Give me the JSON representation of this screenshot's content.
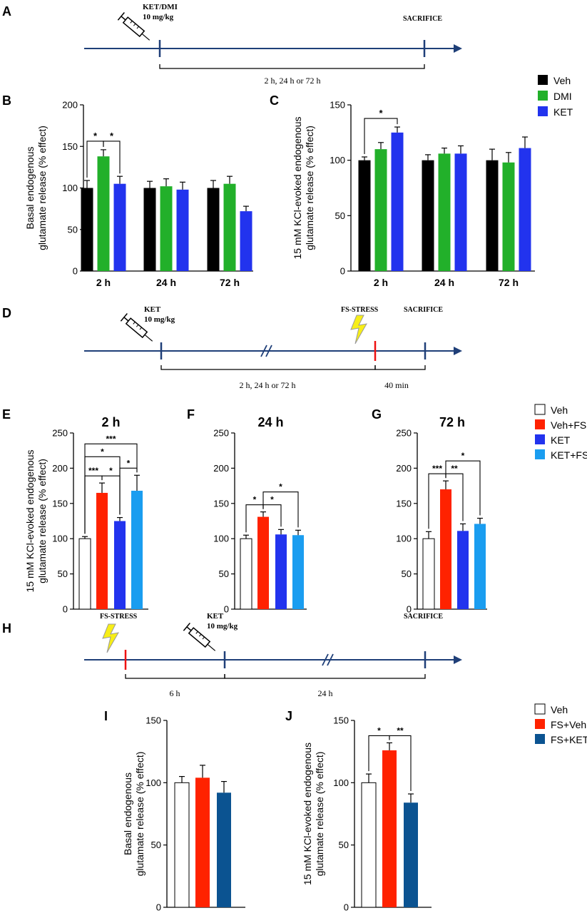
{
  "colors": {
    "veh_black": "#000000",
    "dmi_green": "#22b02a",
    "ket_blue": "#2233ee",
    "white": "#ffffff",
    "fs_red": "#ff2200",
    "ketfs_lightblue": "#1a9df0",
    "fsket_darkblue": "#0b5391",
    "timeline": "#1f3f78",
    "stress_red": "#ee1111",
    "bolt_yellow": "#f7ee17"
  },
  "timelines": {
    "A": {
      "panel": "A",
      "event_ket_dmi": "KET/DMI",
      "dose": "10 mg/kg",
      "event_sacrifice": "SACRIFICE",
      "interval": "2 h, 24 h or 72 h"
    },
    "D": {
      "panel": "D",
      "event_ket": "KET",
      "dose": "10 mg/kg",
      "event_stress": "FS-STRESS",
      "event_sacrifice": "SACRIFICE",
      "interval_1": "2 h, 24 h or 72 h",
      "interval_2": "40 min"
    },
    "H": {
      "panel": "H",
      "event_stress": "FS-STRESS",
      "event_ket": "KET",
      "dose": "10 mg/kg",
      "event_sacrifice": "SACRIFICE",
      "interval_1": "6 h",
      "interval_2": "24 h"
    }
  },
  "legends": {
    "BC": [
      {
        "name": "Veh",
        "color": "#000000"
      },
      {
        "name": "DMI",
        "color": "#22b02a"
      },
      {
        "name": "KET",
        "color": "#2233ee"
      }
    ],
    "EFG": [
      {
        "name": "Veh",
        "color": "#ffffff"
      },
      {
        "name": "Veh+FS",
        "color": "#ff2200"
      },
      {
        "name": "KET",
        "color": "#2233ee"
      },
      {
        "name": "KET+FS",
        "color": "#1a9df0"
      }
    ],
    "IJ": [
      {
        "name": "Veh",
        "color": "#ffffff"
      },
      {
        "name": "FS+Veh",
        "color": "#ff2200"
      },
      {
        "name": "FS+KET",
        "color": "#0b5391"
      }
    ]
  },
  "chart_data": [
    {
      "panel": "B",
      "type": "bar",
      "title": "",
      "ylabel_lines": [
        "Basal endogenous",
        "glutamate release (% effect)"
      ],
      "ylim": [
        0,
        200
      ],
      "yticks": [
        0,
        50,
        100,
        150,
        200
      ],
      "categories": [
        "2 h",
        "24 h",
        "72 h"
      ],
      "series": [
        {
          "name": "Veh",
          "color": "#000000",
          "values": [
            100,
            100,
            100
          ],
          "errors": [
            9,
            8,
            9
          ]
        },
        {
          "name": "DMI",
          "color": "#22b02a",
          "values": [
            138,
            102,
            105
          ],
          "errors": [
            8,
            9,
            9
          ]
        },
        {
          "name": "KET",
          "color": "#2233ee",
          "values": [
            105,
            98,
            72
          ],
          "errors": [
            9,
            9,
            6
          ]
        }
      ],
      "significance": [
        {
          "group": 0,
          "from": 0,
          "to": 1,
          "label": "*",
          "level": 0
        },
        {
          "group": 0,
          "from": 1,
          "to": 2,
          "label": "*",
          "level": 0
        }
      ]
    },
    {
      "panel": "C",
      "type": "bar",
      "title": "",
      "ylabel_lines": [
        "15 mM KCl-evoked endogenous",
        "glutamate release (% effect)"
      ],
      "ylim": [
        0,
        150
      ],
      "yticks": [
        0,
        50,
        100,
        150
      ],
      "categories": [
        "2 h",
        "24 h",
        "72 h"
      ],
      "series": [
        {
          "name": "Veh",
          "color": "#000000",
          "values": [
            100,
            100,
            100
          ],
          "errors": [
            3,
            5,
            10
          ]
        },
        {
          "name": "DMI",
          "color": "#22b02a",
          "values": [
            110,
            106,
            98
          ],
          "errors": [
            6,
            5,
            9
          ]
        },
        {
          "name": "KET",
          "color": "#2233ee",
          "values": [
            125,
            106,
            111
          ],
          "errors": [
            5,
            7,
            10
          ]
        }
      ],
      "significance": [
        {
          "group": 0,
          "from": 0,
          "to": 2,
          "label": "*",
          "level": 0
        }
      ]
    },
    {
      "panel": "E",
      "type": "bar",
      "title": "2 h",
      "ylabel_lines": [
        "15 mM KCl-evoked endogenous",
        "glutamate release (% effect)"
      ],
      "ylim": [
        0,
        250
      ],
      "yticks": [
        0,
        50,
        100,
        150,
        200,
        250
      ],
      "categories": [
        "Veh",
        "Veh+FS",
        "KET",
        "KET+FS"
      ],
      "values": [
        100,
        165,
        125,
        168
      ],
      "errors": [
        3,
        14,
        5,
        22
      ],
      "colors": [
        "#ffffff",
        "#ff2200",
        "#2233ee",
        "#1a9df0"
      ],
      "significance": [
        {
          "from": 0,
          "to": 1,
          "label": "***",
          "level": 0
        },
        {
          "from": 1,
          "to": 2,
          "label": "*",
          "level": 0
        },
        {
          "from": 2,
          "to": 3,
          "label": "*",
          "level": 0
        },
        {
          "from": 0,
          "to": 2,
          "label": "*",
          "level": 1
        },
        {
          "from": 0,
          "to": 3,
          "label": "***",
          "level": 2
        }
      ]
    },
    {
      "panel": "F",
      "type": "bar",
      "title": "24 h",
      "ylabel_lines": [],
      "ylim": [
        0,
        250
      ],
      "yticks": [
        0,
        50,
        100,
        150,
        200,
        250
      ],
      "categories": [
        "Veh",
        "Veh+FS",
        "KET",
        "KET+FS"
      ],
      "values": [
        100,
        131,
        106,
        105
      ],
      "errors": [
        5,
        7,
        7,
        7
      ],
      "colors": [
        "#ffffff",
        "#ff2200",
        "#2233ee",
        "#1a9df0"
      ],
      "significance": [
        {
          "from": 0,
          "to": 1,
          "label": "*",
          "level": 0
        },
        {
          "from": 1,
          "to": 2,
          "label": "*",
          "level": 0
        },
        {
          "from": 1,
          "to": 3,
          "label": "*",
          "level": 1
        }
      ]
    },
    {
      "panel": "G",
      "type": "bar",
      "title": "72 h",
      "ylabel_lines": [],
      "ylim": [
        0,
        250
      ],
      "yticks": [
        0,
        50,
        100,
        150,
        200,
        250
      ],
      "categories": [
        "Veh",
        "Veh+FS",
        "KET",
        "KET+FS"
      ],
      "values": [
        100,
        170,
        111,
        121
      ],
      "errors": [
        10,
        12,
        10,
        8
      ],
      "colors": [
        "#ffffff",
        "#ff2200",
        "#2233ee",
        "#1a9df0"
      ],
      "significance": [
        {
          "from": 0,
          "to": 1,
          "label": "***",
          "level": 0
        },
        {
          "from": 1,
          "to": 2,
          "label": "**",
          "level": 0
        },
        {
          "from": 1,
          "to": 3,
          "label": "*",
          "level": 1
        }
      ]
    },
    {
      "panel": "I",
      "type": "bar",
      "title": "",
      "ylabel_lines": [
        "Basal endogenous",
        "glutamate release (% effect)"
      ],
      "ylim": [
        0,
        150
      ],
      "yticks": [
        0,
        50,
        100,
        150
      ],
      "categories": [
        "Veh",
        "FS+Veh",
        "FS+KET"
      ],
      "values": [
        100,
        104,
        92
      ],
      "errors": [
        5,
        10,
        9
      ],
      "colors": [
        "#ffffff",
        "#ff2200",
        "#0b5391"
      ],
      "significance": []
    },
    {
      "panel": "J",
      "type": "bar",
      "title": "",
      "ylabel_lines": [
        "15 mM KCl-evoked endogenous",
        "glutamate release (% effect)"
      ],
      "ylim": [
        0,
        150
      ],
      "yticks": [
        0,
        50,
        100,
        150
      ],
      "categories": [
        "Veh",
        "FS+Veh",
        "FS+KET"
      ],
      "values": [
        100,
        126,
        84
      ],
      "errors": [
        7,
        6,
        7
      ],
      "colors": [
        "#ffffff",
        "#ff2200",
        "#0b5391"
      ],
      "significance": [
        {
          "from": 0,
          "to": 1,
          "label": "*",
          "level": 0
        },
        {
          "from": 1,
          "to": 2,
          "label": "**",
          "level": 0
        }
      ]
    }
  ]
}
